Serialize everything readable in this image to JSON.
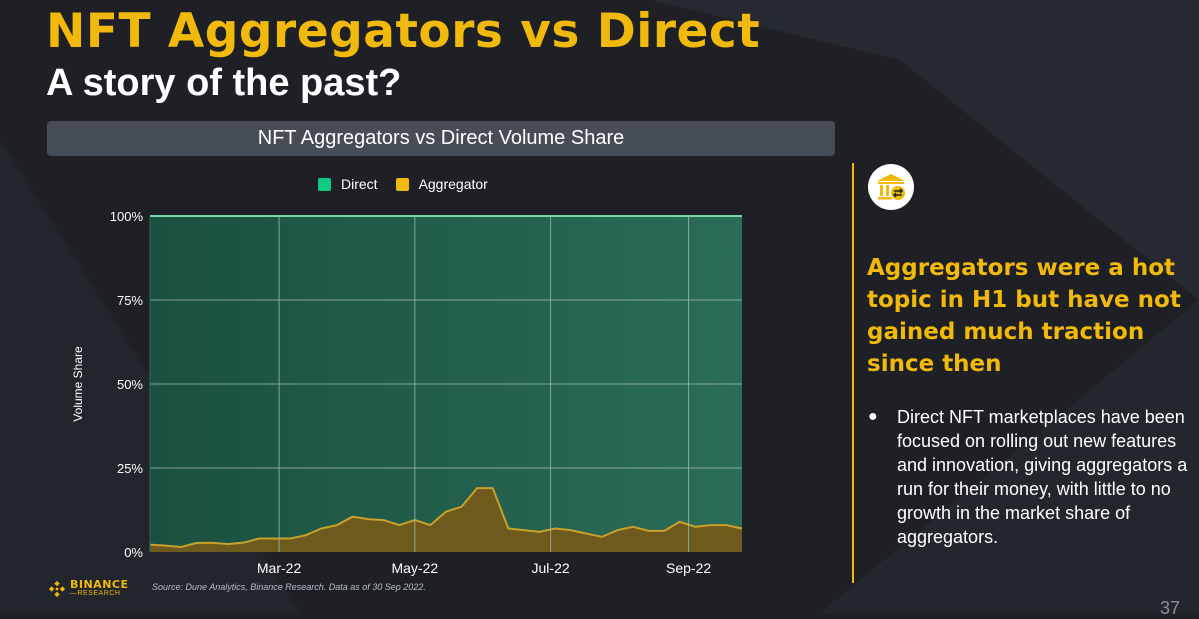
{
  "header": {
    "title": "NFT Aggregators vs Direct",
    "subtitle": "A story of the past?"
  },
  "chart_data": {
    "type": "area",
    "title": "NFT Aggregators vs Direct Volume Share",
    "xlabel": "",
    "ylabel": "Volume Share",
    "ylim": [
      0,
      100
    ],
    "y_ticks": [
      "0%",
      "25%",
      "50%",
      "75%",
      "100%"
    ],
    "x_ticks": [
      "Mar-22",
      "May-22",
      "Jul-22",
      "Sep-22"
    ],
    "x": [
      "2022-01-02",
      "2022-01-09",
      "2022-01-16",
      "2022-01-23",
      "2022-01-30",
      "2022-02-06",
      "2022-02-13",
      "2022-02-20",
      "2022-02-27",
      "2022-03-06",
      "2022-03-13",
      "2022-03-20",
      "2022-03-27",
      "2022-04-03",
      "2022-04-10",
      "2022-04-17",
      "2022-04-24",
      "2022-05-01",
      "2022-05-08",
      "2022-05-15",
      "2022-05-22",
      "2022-05-29",
      "2022-06-05",
      "2022-06-12",
      "2022-06-19",
      "2022-06-26",
      "2022-07-03",
      "2022-07-10",
      "2022-07-17",
      "2022-07-24",
      "2022-07-31",
      "2022-08-07",
      "2022-08-14",
      "2022-08-21",
      "2022-08-28",
      "2022-09-04",
      "2022-09-11",
      "2022-09-18",
      "2022-09-25"
    ],
    "stacked": true,
    "series": [
      {
        "name": "Aggregator",
        "color": "#f0b90b",
        "values": [
          2.2,
          1.9,
          1.5,
          2.7,
          2.7,
          2.4,
          2.8,
          4.0,
          4.0,
          4.0,
          5.0,
          7.0,
          8.0,
          10.5,
          9.8,
          9.5,
          8.0,
          9.5,
          8.0,
          12.0,
          13.5,
          19.0,
          19.0,
          7.0,
          6.5,
          6.0,
          7.0,
          6.5,
          5.5,
          4.5,
          6.5,
          7.5,
          6.3,
          6.3,
          9.0,
          7.5,
          8.0,
          8.0,
          7.0
        ]
      },
      {
        "name": "Direct",
        "color": "#0ecb81",
        "values": [
          97.8,
          98.1,
          98.5,
          97.3,
          97.3,
          97.6,
          97.2,
          96.0,
          96.0,
          96.0,
          95.0,
          93.0,
          92.0,
          89.5,
          90.2,
          90.5,
          92.0,
          90.5,
          92.0,
          88.0,
          86.5,
          81.0,
          81.0,
          93.0,
          93.5,
          94.0,
          93.0,
          93.5,
          94.5,
          95.5,
          93.5,
          92.5,
          93.7,
          93.7,
          91.0,
          92.5,
          92.0,
          92.0,
          93.0
        ]
      }
    ],
    "legend": "top-center",
    "grid": true,
    "source": "Source: Dune Analytics, Binance Research. Data as of 30 Sep 2022."
  },
  "brand": {
    "logo_line1": "BINANCE",
    "logo_line2": "RESEARCH",
    "icon": "bank-transfer-icon"
  },
  "sidebar": {
    "headline": "Aggregators were a hot topic in H1 but have not gained much traction since then",
    "bullet": "Direct NFT marketplaces have been focused on rolling out new features and innovation, giving aggregators a run for their money, with little to no growth in the market share of aggregators."
  },
  "page_number": "37",
  "colors": {
    "accent": "#f0b90b",
    "background": "#1e2026",
    "direct": "#0ecb81",
    "aggregator": "#f0b90b"
  }
}
